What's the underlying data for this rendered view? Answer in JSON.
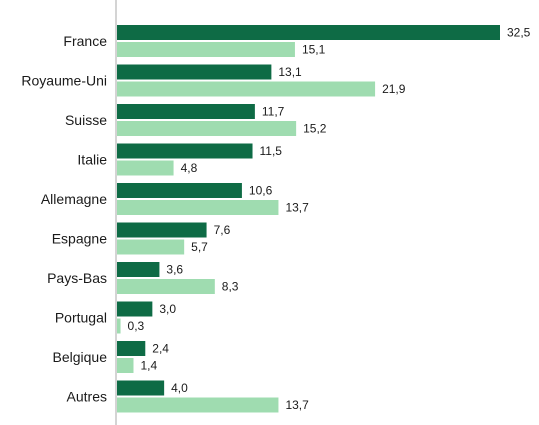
{
  "chart_data": {
    "type": "bar",
    "orientation": "horizontal",
    "categories": [
      "France",
      "Royaume-Uni",
      "Suisse",
      "Italie",
      "Allemagne",
      "Espagne",
      "Pays-Bas",
      "Portugal",
      "Belgique",
      "Autres"
    ],
    "series": [
      {
        "color": "#0e6b45",
        "values": [
          32.5,
          13.1,
          11.7,
          11.5,
          10.6,
          7.6,
          3.6,
          3.0,
          2.4,
          4.0
        ],
        "labels": [
          "32,5",
          "13,1",
          "11,7",
          "11,5",
          "10,6",
          "7,6",
          "3,6",
          "3,0",
          "2,4",
          "4,0"
        ]
      },
      {
        "color": "#9fdcb0",
        "values": [
          15.1,
          21.9,
          15.2,
          4.8,
          13.7,
          5.7,
          8.3,
          0.3,
          1.4,
          13.7
        ],
        "labels": [
          "15,1",
          "21,9",
          "15,2",
          "4,8",
          "13,7",
          "5,7",
          "8,3",
          "0,3",
          "1,4",
          "13,7"
        ]
      }
    ],
    "xlim": [
      0,
      32.5
    ],
    "grid": false,
    "legend": "none",
    "axis_color": "#aaaaaa"
  }
}
